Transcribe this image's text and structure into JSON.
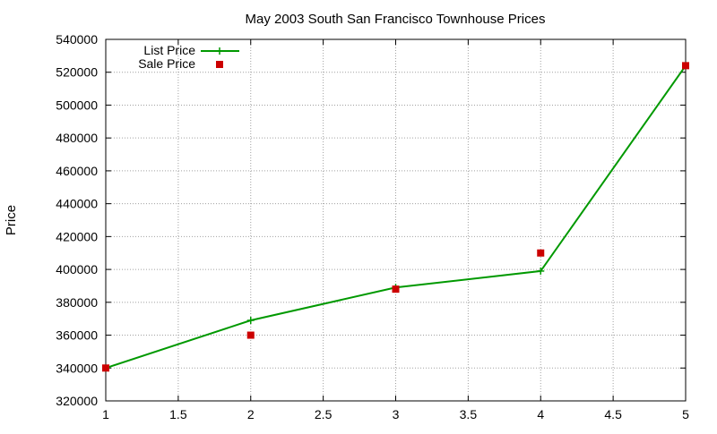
{
  "chart_data": {
    "type": "line",
    "title": "May 2003 South San Francisco Townhouse Prices",
    "xlabel": "",
    "ylabel": "Price",
    "xlim": [
      1,
      5
    ],
    "ylim": [
      320000,
      540000
    ],
    "x_ticks": [
      "1",
      "1.5",
      "2",
      "2.5",
      "3",
      "3.5",
      "4",
      "4.5",
      "5"
    ],
    "y_ticks": [
      "320000",
      "340000",
      "360000",
      "380000",
      "400000",
      "420000",
      "440000",
      "460000",
      "480000",
      "500000",
      "520000",
      "540000"
    ],
    "grid": true,
    "legend_position": "top-left",
    "series": [
      {
        "name": "List Price",
        "style": "line-with-plus-markers",
        "color": "#009900",
        "x": [
          1,
          2,
          3,
          4,
          5
        ],
        "values": [
          340000,
          369000,
          389000,
          399000,
          524000
        ]
      },
      {
        "name": "Sale Price",
        "style": "square-markers",
        "color": "#cc0000",
        "x": [
          1,
          2,
          3,
          4,
          5
        ],
        "values": [
          340000,
          360000,
          388000,
          410000,
          524000
        ]
      }
    ]
  }
}
